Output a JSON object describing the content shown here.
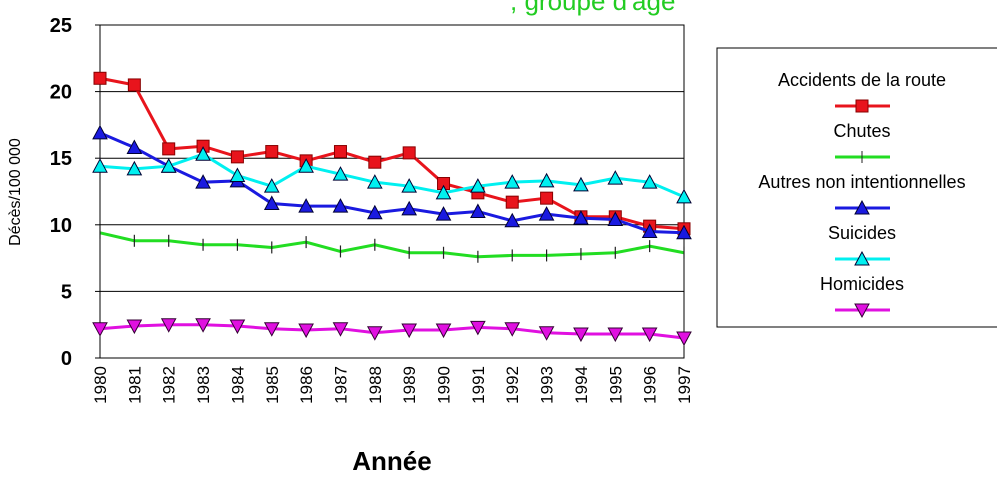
{
  "chart_data": {
    "type": "line",
    "title": ", groupe d'âge",
    "x_label": "Année",
    "y_label": "Décès/100 000",
    "categories": [
      "1980",
      "1981",
      "1982",
      "1983",
      "1984",
      "1985",
      "1986",
      "1987",
      "1988",
      "1989",
      "1990",
      "1991",
      "1992",
      "1993",
      "1994",
      "1995",
      "1996",
      "1997"
    ],
    "ylim": [
      0,
      25
    ],
    "yticks": [
      0,
      5,
      10,
      15,
      20,
      25
    ],
    "grid": true,
    "legend": "right",
    "series": [
      {
        "name": "Accidents de la route",
        "color": "#e8141c",
        "marker": "square",
        "values": [
          21.0,
          20.5,
          15.7,
          15.9,
          15.1,
          15.5,
          14.8,
          15.5,
          14.7,
          15.4,
          13.1,
          12.4,
          11.7,
          12.0,
          10.6,
          10.6,
          9.9,
          9.7
        ]
      },
      {
        "name": "Chutes",
        "color": "#22dd22",
        "marker": "tick",
        "values": [
          9.4,
          8.8,
          8.8,
          8.5,
          8.5,
          8.3,
          8.7,
          8.0,
          8.5,
          7.9,
          7.9,
          7.6,
          7.7,
          7.7,
          7.8,
          7.9,
          8.4,
          7.9
        ]
      },
      {
        "name": "Autres non intentionnelles",
        "color": "#1a1ae0",
        "marker": "triangle",
        "values": [
          16.9,
          15.8,
          14.4,
          13.2,
          13.3,
          11.6,
          11.4,
          11.4,
          10.9,
          11.2,
          10.8,
          11.0,
          10.3,
          10.8,
          10.5,
          10.4,
          9.5,
          9.4
        ]
      },
      {
        "name": "Suicides",
        "color": "#00f0f0",
        "marker": "triangle",
        "values": [
          14.4,
          14.2,
          14.4,
          15.3,
          13.7,
          12.9,
          14.4,
          13.8,
          13.2,
          12.9,
          12.4,
          12.9,
          13.2,
          13.3,
          13.0,
          13.5,
          13.2,
          12.1
        ]
      },
      {
        "name": "Homicides",
        "color": "#e010e0",
        "marker": "triangle-down",
        "values": [
          2.2,
          2.4,
          2.5,
          2.5,
          2.4,
          2.2,
          2.1,
          2.2,
          1.9,
          2.1,
          2.1,
          2.3,
          2.2,
          1.9,
          1.8,
          1.8,
          1.8,
          1.5
        ]
      }
    ]
  }
}
